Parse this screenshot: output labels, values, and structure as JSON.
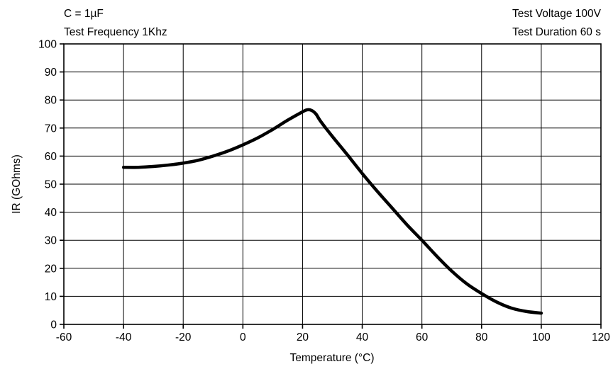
{
  "annotations": {
    "top_left_line1": "C = 1µF",
    "top_left_line2": "Test Frequency 1Khz",
    "top_right_line1": "Test Voltage 100V",
    "top_right_line2": "Test Duration 60 s"
  },
  "colors": {
    "curve": "#000000",
    "grid": "#000000",
    "background": "#ffffff"
  },
  "chart_data": {
    "type": "line",
    "title": "",
    "xlabel": "Temperature (°C)",
    "ylabel": "IR (GOhms)",
    "xlim": [
      -60,
      120
    ],
    "ylim": [
      0,
      100
    ],
    "xticks": [
      -60,
      -40,
      -20,
      0,
      20,
      40,
      60,
      80,
      100,
      120
    ],
    "yticks": [
      0,
      10,
      20,
      30,
      40,
      50,
      60,
      70,
      80,
      90,
      100
    ],
    "grid": true,
    "legend": "none",
    "series": [
      {
        "x": [
          -40,
          -35,
          -30,
          -25,
          -20,
          -15,
          -10,
          -5,
          0,
          5,
          10,
          15,
          20,
          21.5,
          23,
          24.5,
          26,
          30,
          35,
          40,
          45,
          50,
          55,
          60,
          65,
          70,
          75,
          80,
          85,
          90,
          95,
          100
        ],
        "y": [
          56,
          56,
          56.3,
          56.8,
          57.5,
          58.5,
          60,
          61.8,
          64,
          66.5,
          69.5,
          72.8,
          75.8,
          76.5,
          76.3,
          75,
          72.5,
          67,
          60.5,
          53.8,
          47.5,
          41.5,
          35.5,
          30,
          24.3,
          19,
          14.5,
          11,
          8,
          5.8,
          4.6,
          4
        ]
      }
    ]
  }
}
